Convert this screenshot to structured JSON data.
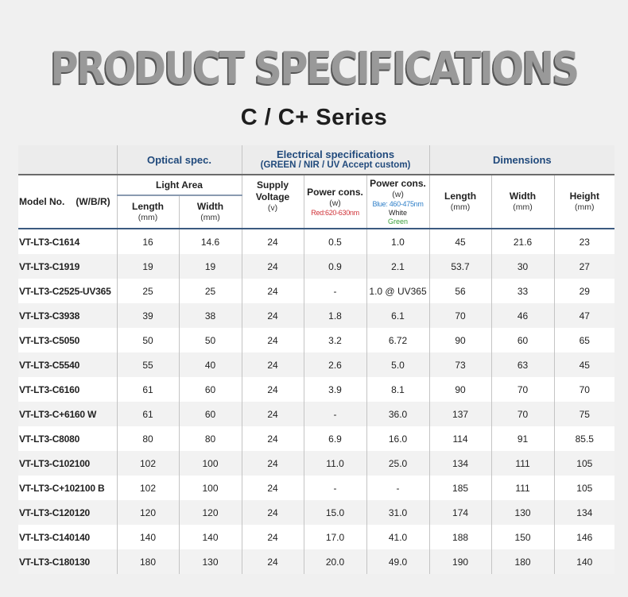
{
  "page": {
    "title": "PRODUCT SPECIFICATIONS",
    "subtitle": "C / C+ Series"
  },
  "colors": {
    "header_blue": "#214a7c",
    "note_red": "#d0343a",
    "note_blue": "#2f7fc8",
    "note_green": "#3aa03a",
    "title_gray": "#999999"
  },
  "table": {
    "groups": {
      "optical": "Optical spec.",
      "electrical": "Electrical specifications",
      "electrical_note": "(GREEN / NIR / UV Accept custom)",
      "dimensions": "Dimensions"
    },
    "headers": {
      "model": "Model No.",
      "model_suffix": "(W/B/R)",
      "light_area": "Light Area",
      "length": "Length",
      "width": "Width",
      "height": "Height",
      "mm": "(mm)",
      "supply_voltage_1": "Supply",
      "supply_voltage_2": "Voltage",
      "volt_unit": "(v)",
      "power_cons": "Power cons.",
      "watt_unit": "(w)",
      "power_red_note": "Red:620-630nm",
      "power_blue_note": "Blue: 460-475nm",
      "power_white_note": "White",
      "power_green_note": "Green"
    },
    "rows": [
      {
        "model": "VT-LT3-C1614",
        "light_length": "16",
        "light_width": "14.6",
        "voltage": "24",
        "power_red": "0.5",
        "power_bwg": "1.0",
        "dim_length": "45",
        "dim_width": "21.6",
        "dim_height": "23"
      },
      {
        "model": "VT-LT3-C1919",
        "light_length": "19",
        "light_width": "19",
        "voltage": "24",
        "power_red": "0.9",
        "power_bwg": "2.1",
        "dim_length": "53.7",
        "dim_width": "30",
        "dim_height": "27"
      },
      {
        "model": "VT-LT3-C2525-UV365",
        "light_length": "25",
        "light_width": "25",
        "voltage": "24",
        "power_red": "-",
        "power_bwg": "1.0 @ UV365",
        "dim_length": "56",
        "dim_width": "33",
        "dim_height": "29"
      },
      {
        "model": "VT-LT3-C3938",
        "light_length": "39",
        "light_width": "38",
        "voltage": "24",
        "power_red": "1.8",
        "power_bwg": "6.1",
        "dim_length": "70",
        "dim_width": "46",
        "dim_height": "47"
      },
      {
        "model": "VT-LT3-C5050",
        "light_length": "50",
        "light_width": "50",
        "voltage": "24",
        "power_red": "3.2",
        "power_bwg": "6.72",
        "dim_length": "90",
        "dim_width": "60",
        "dim_height": "65"
      },
      {
        "model": "VT-LT3-C5540",
        "light_length": "55",
        "light_width": "40",
        "voltage": "24",
        "power_red": "2.6",
        "power_bwg": "5.0",
        "dim_length": "73",
        "dim_width": "63",
        "dim_height": "45"
      },
      {
        "model": "VT-LT3-C6160",
        "light_length": "61",
        "light_width": "60",
        "voltage": "24",
        "power_red": "3.9",
        "power_bwg": "8.1",
        "dim_length": "90",
        "dim_width": "70",
        "dim_height": "70"
      },
      {
        "model": "VT-LT3-C+6160 W",
        "light_length": "61",
        "light_width": "60",
        "voltage": "24",
        "power_red": "-",
        "power_bwg": "36.0",
        "dim_length": "137",
        "dim_width": "70",
        "dim_height": "75"
      },
      {
        "model": "VT-LT3-C8080",
        "light_length": "80",
        "light_width": "80",
        "voltage": "24",
        "power_red": "6.9",
        "power_bwg": "16.0",
        "dim_length": "114",
        "dim_width": "91",
        "dim_height": "85.5"
      },
      {
        "model": "VT-LT3-C102100",
        "light_length": "102",
        "light_width": "100",
        "voltage": "24",
        "power_red": "11.0",
        "power_bwg": "25.0",
        "dim_length": "134",
        "dim_width": "111",
        "dim_height": "105"
      },
      {
        "model": "VT-LT3-C+102100 B",
        "light_length": "102",
        "light_width": "100",
        "voltage": "24",
        "power_red": "-",
        "power_bwg": "-",
        "dim_length": "185",
        "dim_width": "111",
        "dim_height": "105"
      },
      {
        "model": "VT-LT3-C120120",
        "light_length": "120",
        "light_width": "120",
        "voltage": "24",
        "power_red": "15.0",
        "power_bwg": "31.0",
        "dim_length": "174",
        "dim_width": "130",
        "dim_height": "134"
      },
      {
        "model": "VT-LT3-C140140",
        "light_length": "140",
        "light_width": "140",
        "voltage": "24",
        "power_red": "17.0",
        "power_bwg": "41.0",
        "dim_length": "188",
        "dim_width": "150",
        "dim_height": "146"
      },
      {
        "model": "VT-LT3-C180130",
        "light_length": "180",
        "light_width": "130",
        "voltage": "24",
        "power_red": "20.0",
        "power_bwg": "49.0",
        "dim_length": "190",
        "dim_width": "180",
        "dim_height": "140"
      }
    ]
  }
}
